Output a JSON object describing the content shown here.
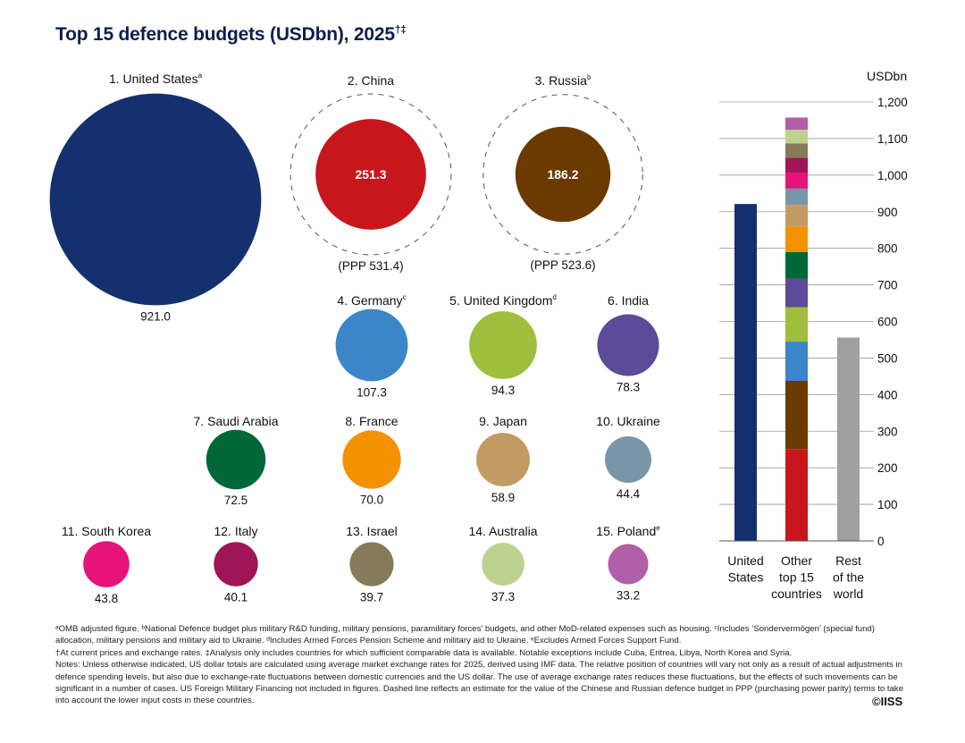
{
  "title": "Top 15 defence budgets (USDbn), 2025",
  "title_marks": "†‡",
  "chart_data": [
    {
      "type": "bubble",
      "title": "Top 15 defence budgets (USDbn), 2025",
      "items": [
        {
          "rank": "1",
          "country": "United States",
          "note": "a",
          "value": 921.0,
          "display": "921.0",
          "color": "#15306e"
        },
        {
          "rank": "2",
          "country": "China",
          "note": "",
          "value": 251.3,
          "display": "251.3",
          "color": "#c8161d",
          "ppp": 531.4,
          "ppp_label": "(PPP 531.4)"
        },
        {
          "rank": "3",
          "country": "Russia",
          "note": "b",
          "value": 186.2,
          "display": "186.2",
          "color": "#6b3a00",
          "ppp": 523.6,
          "ppp_label": "(PPP 523.6)"
        },
        {
          "rank": "4",
          "country": "Germany",
          "note": "c",
          "value": 107.3,
          "display": "107.3",
          "color": "#3a86c8"
        },
        {
          "rank": "5",
          "country": "United Kingdom",
          "note": "d",
          "value": 94.3,
          "display": "94.3",
          "color": "#9fbe3b"
        },
        {
          "rank": "6",
          "country": "India",
          "note": "",
          "value": 78.3,
          "display": "78.3",
          "color": "#5e4a9a"
        },
        {
          "rank": "7",
          "country": "Saudi Arabia",
          "note": "",
          "value": 72.5,
          "display": "72.5",
          "color": "#006837"
        },
        {
          "rank": "8",
          "country": "France",
          "note": "",
          "value": 70.0,
          "display": "70.0",
          "color": "#f39200"
        },
        {
          "rank": "9",
          "country": "Japan",
          "note": "",
          "value": 58.9,
          "display": "58.9",
          "color": "#c49a64"
        },
        {
          "rank": "10",
          "country": "Ukraine",
          "note": "",
          "value": 44.4,
          "display": "44.4",
          "color": "#7896a8"
        },
        {
          "rank": "11",
          "country": "South Korea",
          "note": "",
          "value": 43.8,
          "display": "43.8",
          "color": "#e5137a"
        },
        {
          "rank": "12",
          "country": "Italy",
          "note": "",
          "value": 40.1,
          "display": "40.1",
          "color": "#a01458"
        },
        {
          "rank": "13",
          "country": "Israel",
          "note": "",
          "value": 39.7,
          "display": "39.7",
          "color": "#857a5a"
        },
        {
          "rank": "14",
          "country": "Australia",
          "note": "",
          "value": 37.3,
          "display": "37.3",
          "color": "#bcd28e"
        },
        {
          "rank": "15",
          "country": "Poland",
          "note": "e",
          "value": 33.2,
          "display": "33.2",
          "color": "#b15fa8"
        }
      ]
    },
    {
      "type": "bar",
      "stacked": true,
      "ylabel": "USDbn",
      "ylim": [
        0,
        1200
      ],
      "yticks": [
        "0",
        "100",
        "200",
        "300",
        "400",
        "500",
        "600",
        "700",
        "800",
        "900",
        "1,000",
        "1,100",
        "1,200"
      ],
      "grid": true,
      "categories": [
        [
          "United",
          "States"
        ],
        [
          "Other",
          "top 15",
          "countries"
        ],
        [
          "Rest",
          "of the",
          "world"
        ]
      ],
      "bars": [
        {
          "segments": [
            {
              "value": 921.0,
              "color": "#15306e"
            }
          ]
        },
        {
          "segments": [
            {
              "value": 251.3,
              "color": "#c8161d"
            },
            {
              "value": 186.2,
              "color": "#6b3a00"
            },
            {
              "value": 107.3,
              "color": "#3a86c8"
            },
            {
              "value": 94.3,
              "color": "#9fbe3b"
            },
            {
              "value": 78.3,
              "color": "#5e4a9a"
            },
            {
              "value": 72.5,
              "color": "#006837"
            },
            {
              "value": 70.0,
              "color": "#f39200"
            },
            {
              "value": 58.9,
              "color": "#c49a64"
            },
            {
              "value": 44.4,
              "color": "#7896a8"
            },
            {
              "value": 43.8,
              "color": "#e5137a"
            },
            {
              "value": 40.1,
              "color": "#a01458"
            },
            {
              "value": 39.7,
              "color": "#857a5a"
            },
            {
              "value": 37.3,
              "color": "#bcd28e"
            },
            {
              "value": 33.2,
              "color": "#b15fa8"
            }
          ]
        },
        {
          "segments": [
            {
              "value": 556,
              "color": "#a0a0a0"
            }
          ]
        }
      ]
    }
  ],
  "notes": [
    "ᵃOMB adjusted figure. ᵇNational Defence budget plus military R&D funding, military pensions, paramilitary forces’ budgets, and other MoD-related expenses such as housing. ᶜIncludes ‘Sondervermögen’ (special fund) allocation, military pensions and military aid to Ukraine. ᵈIncludes Armed Forces Pension Scheme and military aid to Ukraine. ᵉExcludes Armed Forces Support Fund.",
    "†At current prices and exchange rates. ‡Analysis only includes countries for which sufficient comparable data is available. Notable exceptions include Cuba, Eritrea, Libya, North Korea and Syria.",
    "Notes: Unless otherwise indicated, US dollar totals are calculated using average market exchange rates for 2025, derived using IMF data. The relative position of countries will vary not only as a result of actual adjustments in defence spending levels, but also due to exchange-rate fluctuations between domestic currencies and the US dollar. The use of average exchange rates reduces these fluctuations, but the effects of such movements can be significant in a number of cases. US Foreign Military Financing not included in figures. Dashed line reflects an estimate for the value of the Chinese and Russian defence budget in PPP (purchasing power parity) terms to take into account the lower input costs in these countries."
  ],
  "copyright": "©IISS"
}
